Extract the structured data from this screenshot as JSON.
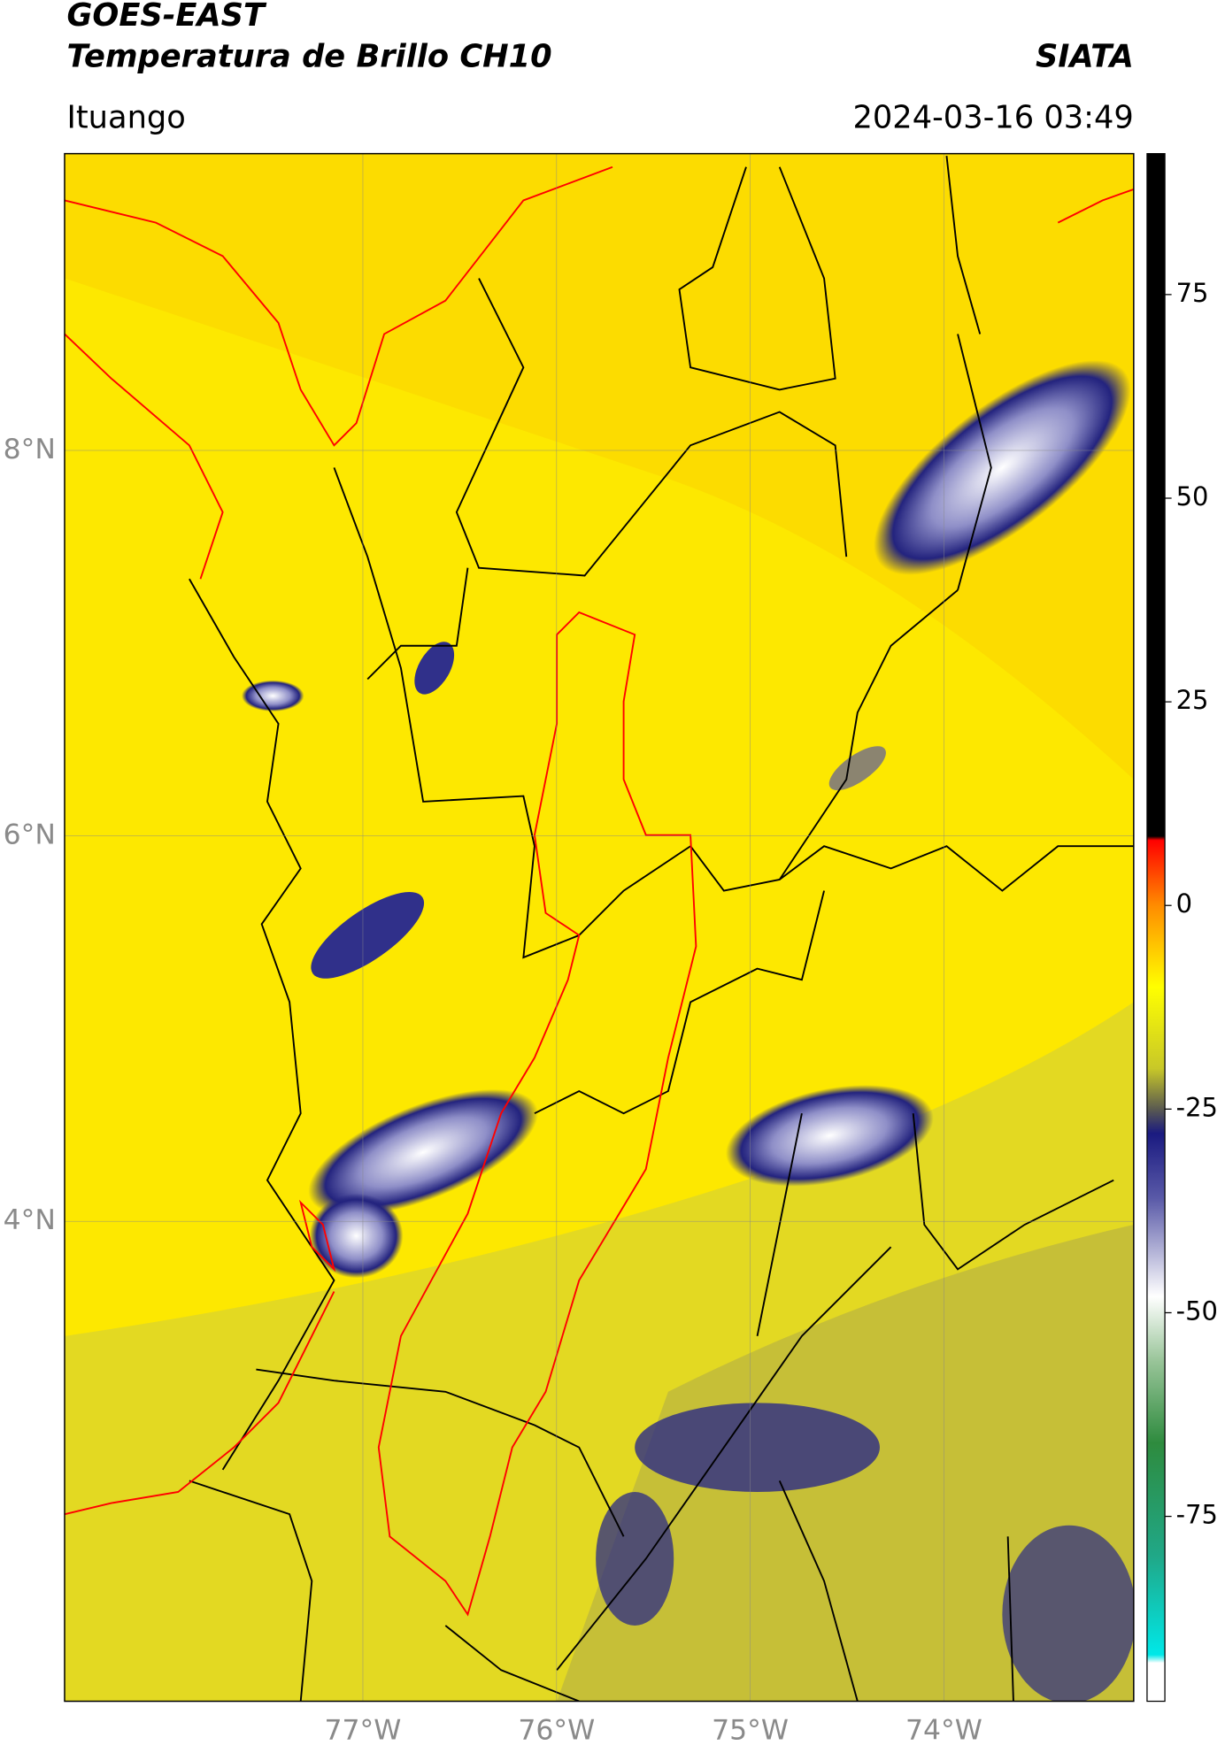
{
  "map": {
    "title": "GOES-EAST",
    "subtitle": "Temperatura de Brillo CH10",
    "source": "SIATA",
    "region": "Ituango",
    "datetime": "2024-03-16 03:49",
    "lonlim": [
      -78.54,
      -73.02
    ],
    "latlim": [
      1.51,
      9.54
    ],
    "lonticks": [
      {
        "value": -77,
        "label": "77°W"
      },
      {
        "value": -76,
        "label": "76°W"
      },
      {
        "value": -75,
        "label": "75°W"
      },
      {
        "value": -74,
        "label": "74°W"
      }
    ],
    "latticks": [
      {
        "value": 8,
        "label": "8°N"
      },
      {
        "value": 6,
        "label": "6°N"
      },
      {
        "value": 4,
        "label": "4°N"
      }
    ],
    "grid": true,
    "colorbar": {
      "lim": [
        -97.7,
        92.3
      ],
      "ticks": [
        75,
        50,
        25,
        0,
        -25,
        -50,
        -75
      ],
      "colormap": [
        {
          "value": 92.3,
          "color": "#000000"
        },
        {
          "value": 8.5,
          "color": "#000000"
        },
        {
          "value": 8,
          "color": "#ff0000"
        },
        {
          "value": 0,
          "color": "#ff8c00"
        },
        {
          "value": -10,
          "color": "#ffff00"
        },
        {
          "value": -20,
          "color": "#c8c828"
        },
        {
          "value": -25,
          "color": "#5a5a50"
        },
        {
          "value": -28,
          "color": "#1a1a80"
        },
        {
          "value": -36,
          "color": "#5a5aa8"
        },
        {
          "value": -48,
          "color": "#ffffff"
        },
        {
          "value": -56,
          "color": "#98c498"
        },
        {
          "value": -66,
          "color": "#2e8b3e"
        },
        {
          "value": -80,
          "color": "#20a888"
        },
        {
          "value": -92,
          "color": "#00e8e8"
        },
        {
          "value": -93,
          "color": "#ffffff"
        },
        {
          "value": -97.7,
          "color": "#ffffff"
        }
      ]
    }
  }
}
